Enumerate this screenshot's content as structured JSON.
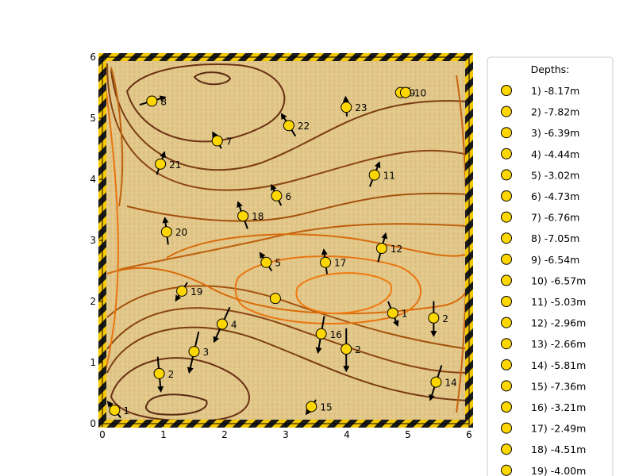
{
  "chart_data": {
    "type": "scatter",
    "title": "",
    "xlabel": "",
    "ylabel": "",
    "xlim": [
      0,
      6
    ],
    "ylim": [
      0,
      6
    ],
    "xticks": [
      "0",
      "1",
      "2",
      "3",
      "4",
      "5",
      "6"
    ],
    "yticks": [
      "0",
      "1",
      "2",
      "3",
      "4",
      "5",
      "6"
    ],
    "grid": false,
    "legend_title": "Depths:",
    "legend_placement": "right-outside",
    "colors": {
      "marker": "#ffd700",
      "background": "#e2c78a",
      "contour_dark": "#5a2a12",
      "contour_light": "#f07a10",
      "border_stripe_a": "#f5c800",
      "border_stripe_b": "#1a1a1a"
    },
    "points": [
      {
        "id": "1",
        "x": 0.2,
        "y": 0.22,
        "depth": "-8.17m",
        "u": -0.2,
        "v": 0.25
      },
      {
        "id": "2",
        "x": 0.93,
        "y": 0.82,
        "depth": "-7.82m",
        "u": 0.05,
        "v": -0.55
      },
      {
        "id": "3",
        "x": 1.5,
        "y": 1.18,
        "depth": "-6.39m",
        "u": -0.15,
        "v": -0.65
      },
      {
        "id": "4",
        "x": 1.96,
        "y": 1.63,
        "depth": "-4.44m",
        "u": -0.25,
        "v": -0.55
      },
      {
        "id": "5",
        "x": 2.68,
        "y": 2.64,
        "depth": "-3.02m",
        "u": -0.18,
        "v": 0.28
      },
      {
        "id": "6",
        "x": 2.85,
        "y": 3.73,
        "depth": "-4.73m",
        "u": -0.15,
        "v": 0.32
      },
      {
        "id": "7",
        "x": 1.88,
        "y": 4.63,
        "depth": "-6.76m",
        "u": -0.13,
        "v": 0.25
      },
      {
        "id": "8",
        "x": 0.81,
        "y": 5.28,
        "depth": "-7.05m",
        "u": 0.4,
        "v": 0.12
      },
      {
        "id": "9",
        "x": 4.88,
        "y": 5.42,
        "depth": "-6.54m",
        "u": 0.12,
        "v": 0.08
      },
      {
        "id": "10",
        "x": 4.96,
        "y": 5.42,
        "depth": "-6.57m",
        "u": 0.1,
        "v": 0.12
      },
      {
        "id": "11",
        "x": 4.45,
        "y": 4.07,
        "depth": "-5.03m",
        "u": 0.15,
        "v": 0.38
      },
      {
        "id": "12",
        "x": 4.57,
        "y": 2.87,
        "depth": "-2.96m",
        "u": 0.12,
        "v": 0.45
      },
      {
        "id": "13",
        "x": 4.75,
        "y": 1.81,
        "depth": "-2.66m",
        "u": 0.15,
        "v": -0.38
      },
      {
        "id": "14",
        "x": 5.46,
        "y": 0.68,
        "depth": "-5.81m",
        "u": -0.18,
        "v": -0.55
      },
      {
        "id": "15",
        "x": 3.42,
        "y": 0.28,
        "depth": "-7.36m",
        "u": -0.15,
        "v": -0.22
      },
      {
        "id": "16",
        "x": 3.58,
        "y": 1.47,
        "depth": "-3.21m",
        "u": -0.1,
        "v": -0.58
      },
      {
        "id": "17",
        "x": 3.65,
        "y": 2.64,
        "depth": "-2.49m",
        "u": -0.05,
        "v": 0.38
      },
      {
        "id": "18",
        "x": 2.3,
        "y": 3.4,
        "depth": "-4.51m",
        "u": -0.15,
        "v": 0.42
      },
      {
        "id": "19",
        "x": 1.3,
        "y": 2.17,
        "depth": "-4.00m",
        "u": -0.18,
        "v": -0.28
      },
      {
        "id": "20",
        "x": 1.05,
        "y": 3.14,
        "depth": "",
        "u": -0.05,
        "v": 0.42
      },
      {
        "id": "21",
        "x": 0.95,
        "y": 4.25,
        "depth": "",
        "u": 0.12,
        "v": 0.35
      },
      {
        "id": "22",
        "x": 3.05,
        "y": 4.88,
        "depth": "",
        "u": -0.22,
        "v": 0.35
      },
      {
        "id": "23",
        "x": 3.99,
        "y": 5.18,
        "depth": "",
        "u": -0.02,
        "v": 0.3
      },
      {
        "id": "24",
        "x": 5.42,
        "y": 1.73,
        "depth": "",
        "u": 0.0,
        "v": -0.55
      },
      {
        "id": "25",
        "x": 3.99,
        "y": 1.22,
        "depth": "",
        "u": 0.0,
        "v": -0.68
      },
      {
        "id": "26",
        "x": 2.83,
        "y": 2.05,
        "depth": "",
        "u": 0.0,
        "v": 0.0
      }
    ],
    "point_labels_shown": [
      "1",
      "2",
      "3",
      "4",
      "5",
      "6",
      "7",
      "8",
      "9",
      "10",
      "11",
      "12",
      "14",
      "15",
      "16",
      "17",
      "18",
      "19",
      "20",
      "21",
      "22",
      "23"
    ],
    "point_labels_partial": {
      "13": "1",
      "24": "2",
      "25": "2",
      "16": "16"
    },
    "legend_entries": [
      "1) -8.17m",
      "2) -7.82m",
      "3) -6.39m",
      "4) -4.44m",
      "5) -3.02m",
      "6) -4.73m",
      "7) -6.76m",
      "8) -7.05m",
      "9) -6.54m",
      "10) -6.57m",
      "11) -5.03m",
      "12) -2.96m",
      "13) -2.66m",
      "14) -5.81m",
      "15) -7.36m",
      "16) -3.21m",
      "17) -2.49m",
      "18) -4.51m",
      "19) -4.00m"
    ]
  }
}
